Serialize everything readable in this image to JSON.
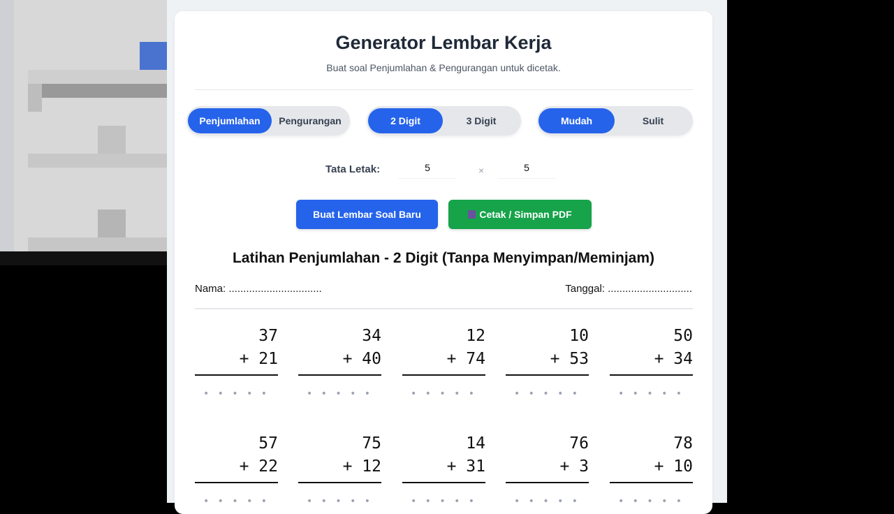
{
  "header": {
    "title": "Generator Lembar Kerja",
    "subtitle": "Buat soal Penjumlahan & Pengurangan untuk dicetak."
  },
  "operation": {
    "options": [
      "Penjumlahan",
      "Pengurangan"
    ],
    "selected": "Penjumlahan"
  },
  "digits": {
    "options": [
      "2 Digit",
      "3 Digit"
    ],
    "selected": "2 Digit"
  },
  "difficulty": {
    "options": [
      "Mudah",
      "Sulit"
    ],
    "selected": "Mudah"
  },
  "layout": {
    "label": "Tata Letak:",
    "rows": "5",
    "separator": "×",
    "cols": "5"
  },
  "actions": {
    "generate": "Buat Lembar Soal Baru",
    "print_icon": "printer-icon",
    "print": "Cetak / Simpan PDF"
  },
  "colors": {
    "primary": "#2563eb",
    "success": "#16a34a"
  },
  "worksheet": {
    "title": "Latihan Penjumlahan - 2 Digit (Tanpa Menyimpan/Meminjam)",
    "name_label": "Nama: ................................",
    "date_label": "Tanggal: .............................",
    "answer_placeholder": "• • • • •",
    "problems": [
      {
        "a": "37",
        "b": "+ 21"
      },
      {
        "a": "34",
        "b": "+ 40"
      },
      {
        "a": "12",
        "b": "+ 74"
      },
      {
        "a": "10",
        "b": "+ 53"
      },
      {
        "a": "50",
        "b": "+ 34"
      },
      {
        "a": "57",
        "b": "+ 22"
      },
      {
        "a": "75",
        "b": "+ 12"
      },
      {
        "a": "14",
        "b": "+ 31"
      },
      {
        "a": "76",
        "b": "+ 3"
      },
      {
        "a": "78",
        "b": "+ 10"
      }
    ]
  }
}
